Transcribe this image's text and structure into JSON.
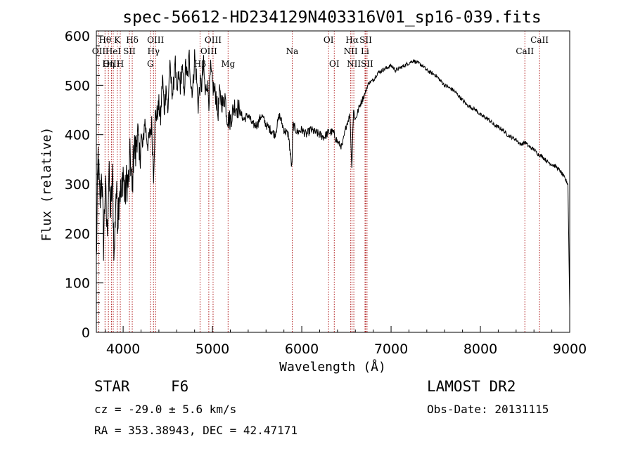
{
  "chart_data": {
    "type": "line",
    "title": "spec-56612-HD234129N403316V01_sp16-039.fits",
    "xlabel": "Wavelength (Å)",
    "ylabel": "Flux (relative)",
    "xlim": [
      3700,
      9000
    ],
    "ylim": [
      0,
      610
    ],
    "x_ticks": [
      "4000",
      "5000",
      "6000",
      "7000",
      "8000",
      "9000"
    ],
    "y_ticks": [
      "0",
      "100",
      "200",
      "300",
      "400",
      "500",
      "600"
    ],
    "grid": false,
    "line_color": "#000000",
    "marker_color": "#b22222",
    "series": [
      {
        "x": [
          3700,
          3720,
          3740,
          3760,
          3780,
          3800,
          3820,
          3840,
          3860,
          3880,
          3900,
          3920,
          3940,
          3960,
          3980,
          4000,
          4020,
          4040,
          4060,
          4080,
          4100,
          4120,
          4140,
          4160,
          4180,
          4200,
          4220,
          4240,
          4260,
          4280,
          4300,
          4320,
          4340,
          4360,
          4380,
          4400,
          4420,
          4440,
          4460,
          4480,
          4500,
          4520,
          4540,
          4560,
          4580,
          4600,
          4620,
          4640,
          4660,
          4680,
          4700,
          4720,
          4740,
          4760,
          4780,
          4800,
          4820,
          4840,
          4860,
          4880,
          4900,
          4920,
          4940,
          4960,
          4980,
          5000,
          5020,
          5040,
          5060,
          5080,
          5100,
          5120,
          5140,
          5160,
          5180,
          5200,
          5250,
          5300,
          5350,
          5400,
          5450,
          5500,
          5550,
          5600,
          5650,
          5700,
          5750,
          5800,
          5850,
          5890,
          5900,
          5950,
          6000,
          6050,
          6100,
          6150,
          6200,
          6250,
          6300,
          6350,
          6400,
          6450,
          6500,
          6540,
          6560,
          6570,
          6580,
          6600,
          6650,
          6700,
          6750,
          6800,
          6850,
          6900,
          6950,
          7000,
          7050,
          7100,
          7150,
          7200,
          7250,
          7300,
          7350,
          7400,
          7450,
          7500,
          7550,
          7600,
          7650,
          7700,
          7750,
          7800,
          7850,
          7900,
          7950,
          8000,
          8050,
          8100,
          8150,
          8200,
          8250,
          8300,
          8350,
          8400,
          8450,
          8500,
          8550,
          8600,
          8650,
          8700,
          8750,
          8800,
          8850,
          8900,
          8950,
          8980,
          9000
        ],
        "values": [
          140,
          360,
          250,
          330,
          180,
          300,
          200,
          320,
          240,
          310,
          150,
          290,
          230,
          300,
          270,
          330,
          270,
          310,
          300,
          360,
          280,
          380,
          360,
          420,
          340,
          400,
          370,
          430,
          400,
          380,
          400,
          420,
          320,
          440,
          440,
          460,
          430,
          520,
          450,
          500,
          440,
          540,
          500,
          480,
          560,
          470,
          520,
          500,
          540,
          480,
          540,
          510,
          560,
          500,
          490,
          560,
          520,
          460,
          500,
          500,
          540,
          480,
          510,
          470,
          530,
          500,
          490,
          480,
          440,
          480,
          470,
          460,
          480,
          440,
          430,
          430,
          460,
          450,
          430,
          440,
          420,
          420,
          440,
          420,
          410,
          400,
          440,
          410,
          400,
          330,
          420,
          405,
          410,
          400,
          410,
          405,
          400,
          395,
          405,
          405,
          385,
          375,
          420,
          440,
          330,
          400,
          450,
          430,
          460,
          480,
          505,
          510,
          525,
          530,
          535,
          540,
          530,
          535,
          540,
          545,
          550,
          545,
          540,
          530,
          525,
          520,
          510,
          500,
          495,
          490,
          480,
          470,
          460,
          455,
          450,
          440,
          435,
          430,
          420,
          415,
          410,
          400,
          395,
          390,
          380,
          385,
          375,
          370,
          360,
          355,
          345,
          340,
          335,
          325,
          310,
          300,
          50
        ]
      }
    ],
    "line_markers": [
      {
        "label": "Hθ",
        "x": 3797,
        "row": 1
      },
      {
        "label": "K",
        "x": 3934,
        "row": 1
      },
      {
        "label": "Hδ",
        "x": 4102,
        "row": 1
      },
      {
        "label": "OII",
        "x": 3727,
        "row": 2
      },
      {
        "label": "HeI",
        "x": 3889,
        "row": 2
      },
      {
        "label": "SII",
        "x": 4070,
        "row": 2
      },
      {
        "label": "OIII",
        "x": 3869,
        "row": 3
      },
      {
        "label": "Hη",
        "x": 3835,
        "row": 3
      },
      {
        "label": "H",
        "x": 3968,
        "row": 3
      },
      {
        "label": "OIII",
        "x": 4363,
        "row": 1
      },
      {
        "label": "Hγ",
        "x": 4340,
        "row": 2
      },
      {
        "label": "G",
        "x": 4305,
        "row": 3
      },
      {
        "label": "OIII",
        "x": 5007,
        "row": 1
      },
      {
        "label": "OIII",
        "x": 4959,
        "row": 2
      },
      {
        "label": "Hβ",
        "x": 4861,
        "row": 3
      },
      {
        "label": "Mg",
        "x": 5175,
        "row": 3
      },
      {
        "label": "Na",
        "x": 5893,
        "row": 2
      },
      {
        "label": "OI",
        "x": 6300,
        "row": 1
      },
      {
        "label": "OI",
        "x": 6364,
        "row": 3
      },
      {
        "label": "Hα",
        "x": 6563,
        "row": 1
      },
      {
        "label": "SII",
        "x": 6716,
        "row": 1
      },
      {
        "label": "NII",
        "x": 6548,
        "row": 2
      },
      {
        "label": "Li",
        "x": 6708,
        "row": 2
      },
      {
        "label": "NII",
        "x": 6583,
        "row": 3
      },
      {
        "label": "SII",
        "x": 6731,
        "row": 3
      },
      {
        "label": "CaII",
        "x": 8662,
        "row": 1
      },
      {
        "label": "CaII",
        "x": 8498,
        "row": 2
      }
    ]
  },
  "info": {
    "object_type": "STAR",
    "subclass": "F6",
    "survey": "LAMOST DR2",
    "redshift": "cz = -29.0 ± 5.6 km/s",
    "obs_date": "Obs-Date: 20131115",
    "coords": "RA = 353.38943, DEC =  42.47171"
  }
}
